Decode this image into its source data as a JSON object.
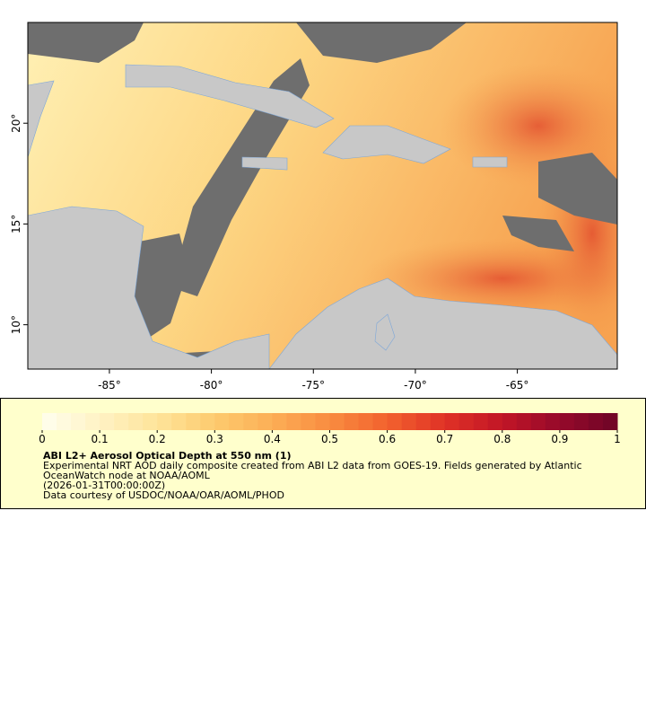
{
  "map": {
    "xlim": [
      -89,
      -60.1
    ],
    "ylim": [
      7.8,
      25
    ],
    "xticks": [
      {
        "value": -85,
        "label": "-85°"
      },
      {
        "value": -80,
        "label": "-80°"
      },
      {
        "value": -75,
        "label": "-75°"
      },
      {
        "value": -70,
        "label": "-70°"
      },
      {
        "value": -65,
        "label": "-65°"
      }
    ],
    "yticks": [
      {
        "value": 10,
        "label": "10°"
      },
      {
        "value": 15,
        "label": "15°"
      },
      {
        "value": 20,
        "label": "20°"
      }
    ]
  },
  "colorbar": {
    "lim": [
      0,
      1
    ],
    "ticks": [
      0,
      0.1,
      0.2,
      0.3,
      0.4,
      0.5,
      0.6,
      0.7,
      0.8,
      0.9,
      1
    ],
    "colors": [
      "#ffffee",
      "#fff2c4",
      "#fee49a",
      "#fdcb6e",
      "#fcae56",
      "#f98c40",
      "#f2622e",
      "#e03226",
      "#c11526",
      "#960a2a",
      "#6e0426"
    ],
    "steps": 40
  },
  "legend": {
    "title": "ABI L2+ Aerosol Optical Depth at 550 nm (1)",
    "lines": [
      "Experimental NRT AOD daily composite created from ABI L2 data from GOES-19. Fields generated by Atlantic",
      "OceanWatch node at NOAA/AOML",
      "(2026-01-31T00:00:00Z)",
      "Data courtesy of USDOC/NOAA/OAR/AOML/PHOD"
    ]
  }
}
